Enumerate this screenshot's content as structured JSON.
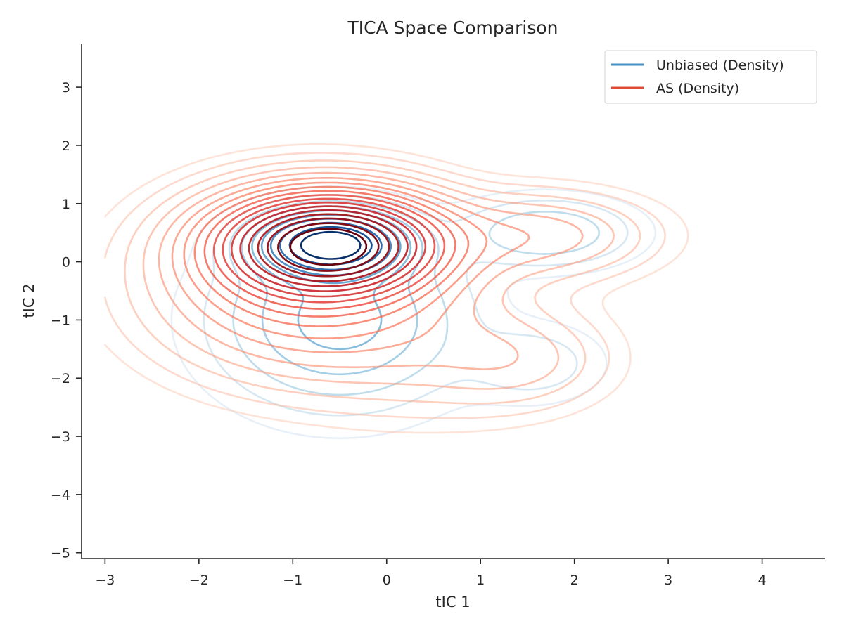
{
  "chart_data": {
    "type": "contour",
    "title": "TICA Space Comparison",
    "xlabel": "tIC 1",
    "ylabel": "tIC 2",
    "xlim": [
      -3.25,
      4.67
    ],
    "ylim": [
      -5.1,
      3.75
    ],
    "xticks": [
      {
        "value": -3,
        "label": "−3"
      },
      {
        "value": -2,
        "label": "−2"
      },
      {
        "value": -1,
        "label": "−1"
      },
      {
        "value": 0,
        "label": "0"
      },
      {
        "value": 1,
        "label": "1"
      },
      {
        "value": 2,
        "label": "2"
      },
      {
        "value": 3,
        "label": "3"
      },
      {
        "value": 4,
        "label": "4"
      }
    ],
    "yticks": [
      {
        "value": -5,
        "label": "−5"
      },
      {
        "value": -4,
        "label": "−4"
      },
      {
        "value": -3,
        "label": "−3"
      },
      {
        "value": -2,
        "label": "−2"
      },
      {
        "value": -1,
        "label": "−1"
      },
      {
        "value": 0,
        "label": "0"
      },
      {
        "value": 1,
        "label": "1"
      },
      {
        "value": 2,
        "label": "2"
      },
      {
        "value": 3,
        "label": "3"
      }
    ],
    "grid": false,
    "legend_position": "top-right",
    "series": [
      {
        "name": "Unbiased (Density)",
        "color": "#4292c6",
        "colormap": "Blues",
        "levels": 10,
        "components": [
          {
            "cx": -0.6,
            "cy": 0.3,
            "sx": 0.45,
            "sy": 0.32,
            "w": 1.0
          },
          {
            "cx": -0.5,
            "cy": -1.0,
            "sx": 0.75,
            "sy": 0.85,
            "w": 0.26
          },
          {
            "cx": 1.7,
            "cy": 0.5,
            "sx": 0.55,
            "sy": 0.35,
            "w": 0.14
          },
          {
            "cx": 1.55,
            "cy": -1.75,
            "sx": 0.45,
            "sy": 0.4,
            "w": 0.07
          }
        ]
      },
      {
        "name": "AS (Density)",
        "color": "#e34a33",
        "colormap": "Reds",
        "levels": 18,
        "components": [
          {
            "cx": -0.6,
            "cy": 0.3,
            "sx": 0.7,
            "sy": 0.52,
            "w": 1.0
          },
          {
            "cx": -0.9,
            "cy": -0.4,
            "sx": 0.95,
            "sy": 0.9,
            "w": 0.22
          },
          {
            "cx": 1.6,
            "cy": 0.45,
            "sx": 0.75,
            "sy": 0.45,
            "w": 0.1
          },
          {
            "cx": 1.4,
            "cy": -1.7,
            "sx": 0.6,
            "sy": 0.5,
            "w": 0.05
          },
          {
            "cx": 0.5,
            "cy": -1.4,
            "sx": 0.9,
            "sy": 0.8,
            "w": 0.05
          }
        ]
      }
    ]
  }
}
